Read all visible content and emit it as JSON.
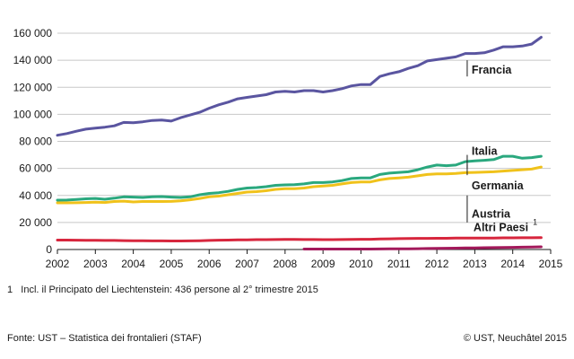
{
  "chart_data": {
    "type": "line",
    "x": [
      2002.0,
      2002.25,
      2002.5,
      2002.75,
      2003.0,
      2003.25,
      2003.5,
      2003.75,
      2004.0,
      2004.25,
      2004.5,
      2004.75,
      2005.0,
      2005.25,
      2005.5,
      2005.75,
      2006.0,
      2006.25,
      2006.5,
      2006.75,
      2007.0,
      2007.25,
      2007.5,
      2007.75,
      2008.0,
      2008.25,
      2008.5,
      2008.75,
      2009.0,
      2009.25,
      2009.5,
      2009.75,
      2010.0,
      2010.25,
      2010.5,
      2010.75,
      2011.0,
      2011.25,
      2011.5,
      2011.75,
      2012.0,
      2012.25,
      2012.5,
      2012.75,
      2013.0,
      2013.25,
      2013.5,
      2013.75,
      2014.0,
      2014.25,
      2014.5,
      2014.75
    ],
    "series": [
      {
        "name": "Francia",
        "color": "#5a55a0",
        "values": [
          84500,
          85800,
          87500,
          89000,
          89800,
          90500,
          91500,
          94000,
          93800,
          94500,
          95500,
          95800,
          95000,
          97500,
          99500,
          101500,
          104500,
          107000,
          109000,
          111500,
          112500,
          113500,
          114500,
          116500,
          117000,
          116500,
          117500,
          117500,
          116500,
          117500,
          119000,
          121000,
          122000,
          122000,
          128000,
          130000,
          131500,
          134000,
          136000,
          139500,
          140500,
          141500,
          142500,
          145000,
          145000,
          145500,
          147500,
          150000,
          150000,
          150500,
          152000,
          157000
        ]
      },
      {
        "name": "Italia",
        "color": "#2aa87e",
        "values": [
          36500,
          36600,
          37000,
          37500,
          37800,
          37200,
          38000,
          39000,
          38800,
          38500,
          39000,
          39200,
          38800,
          38500,
          39000,
          40500,
          41500,
          42000,
          43000,
          44500,
          45500,
          45800,
          46500,
          47500,
          47800,
          48000,
          48500,
          49500,
          49500,
          50000,
          51000,
          52500,
          53000,
          53000,
          55500,
          56500,
          57000,
          57500,
          59000,
          61000,
          62500,
          62000,
          62500,
          65000,
          65500,
          66000,
          66500,
          69000,
          69000,
          67500,
          68000,
          69000
        ]
      },
      {
        "name": "Germania",
        "color": "#f0c21b",
        "values": [
          34500,
          34500,
          34600,
          34800,
          35000,
          34800,
          35500,
          35800,
          35200,
          35500,
          35500,
          35500,
          35600,
          36000,
          36800,
          37800,
          39000,
          39500,
          40500,
          41500,
          42500,
          42800,
          43500,
          44500,
          45000,
          45000,
          45500,
          46500,
          47000,
          47500,
          48500,
          49500,
          50000,
          50000,
          51500,
          52500,
          53000,
          53500,
          54500,
          55500,
          56000,
          56000,
          56200,
          56800,
          57000,
          57200,
          57500,
          58000,
          58500,
          59000,
          59500,
          61000
        ]
      },
      {
        "name": "Austria",
        "color": "#d7263d",
        "values": [
          7000,
          7000,
          6900,
          6800,
          6800,
          6700,
          6700,
          6600,
          6500,
          6500,
          6400,
          6400,
          6300,
          6300,
          6400,
          6500,
          6700,
          6900,
          7000,
          7100,
          7200,
          7300,
          7300,
          7400,
          7500,
          7500,
          7400,
          7400,
          7300,
          7300,
          7400,
          7500,
          7600,
          7600,
          7800,
          7900,
          8000,
          8100,
          8200,
          8200,
          8300,
          8300,
          8400,
          8400,
          8500,
          8500,
          8500,
          8600,
          8600,
          8700,
          8700,
          8800
        ]
      },
      {
        "name": "Altri Paesi",
        "color": "#a3195b",
        "values": [
          null,
          null,
          null,
          null,
          null,
          null,
          null,
          null,
          null,
          null,
          null,
          null,
          null,
          null,
          null,
          null,
          null,
          null,
          null,
          null,
          null,
          null,
          null,
          null,
          null,
          null,
          300,
          300,
          300,
          300,
          350,
          350,
          350,
          350,
          400,
          450,
          500,
          550,
          600,
          700,
          800,
          900,
          1000,
          1100,
          1200,
          1300,
          1400,
          1500,
          1600,
          1700,
          1800,
          2000
        ]
      }
    ],
    "xticks": [
      "2002",
      "2003",
      "2004",
      "2005",
      "2006",
      "2007",
      "2008",
      "2009",
      "2010",
      "2011",
      "2012",
      "2013",
      "2014",
      "2015"
    ],
    "yticks": [
      "0",
      "20 000",
      "40 000",
      "60 000",
      "80 000",
      "100 000",
      "120 000",
      "140 000",
      "160 000"
    ],
    "xlim": [
      2002,
      2015
    ],
    "ylim": [
      0,
      160000
    ],
    "grid": true,
    "footnote_marker": "1",
    "annotation": "Incl. il Principato del Liechtenstein: 436 persone al 2° trimestre 2015"
  },
  "footer": {
    "source": "Fonte: UST – Statistica dei frontalieri (STAF)",
    "credit": "© UST, Neuchâtel 2015"
  }
}
